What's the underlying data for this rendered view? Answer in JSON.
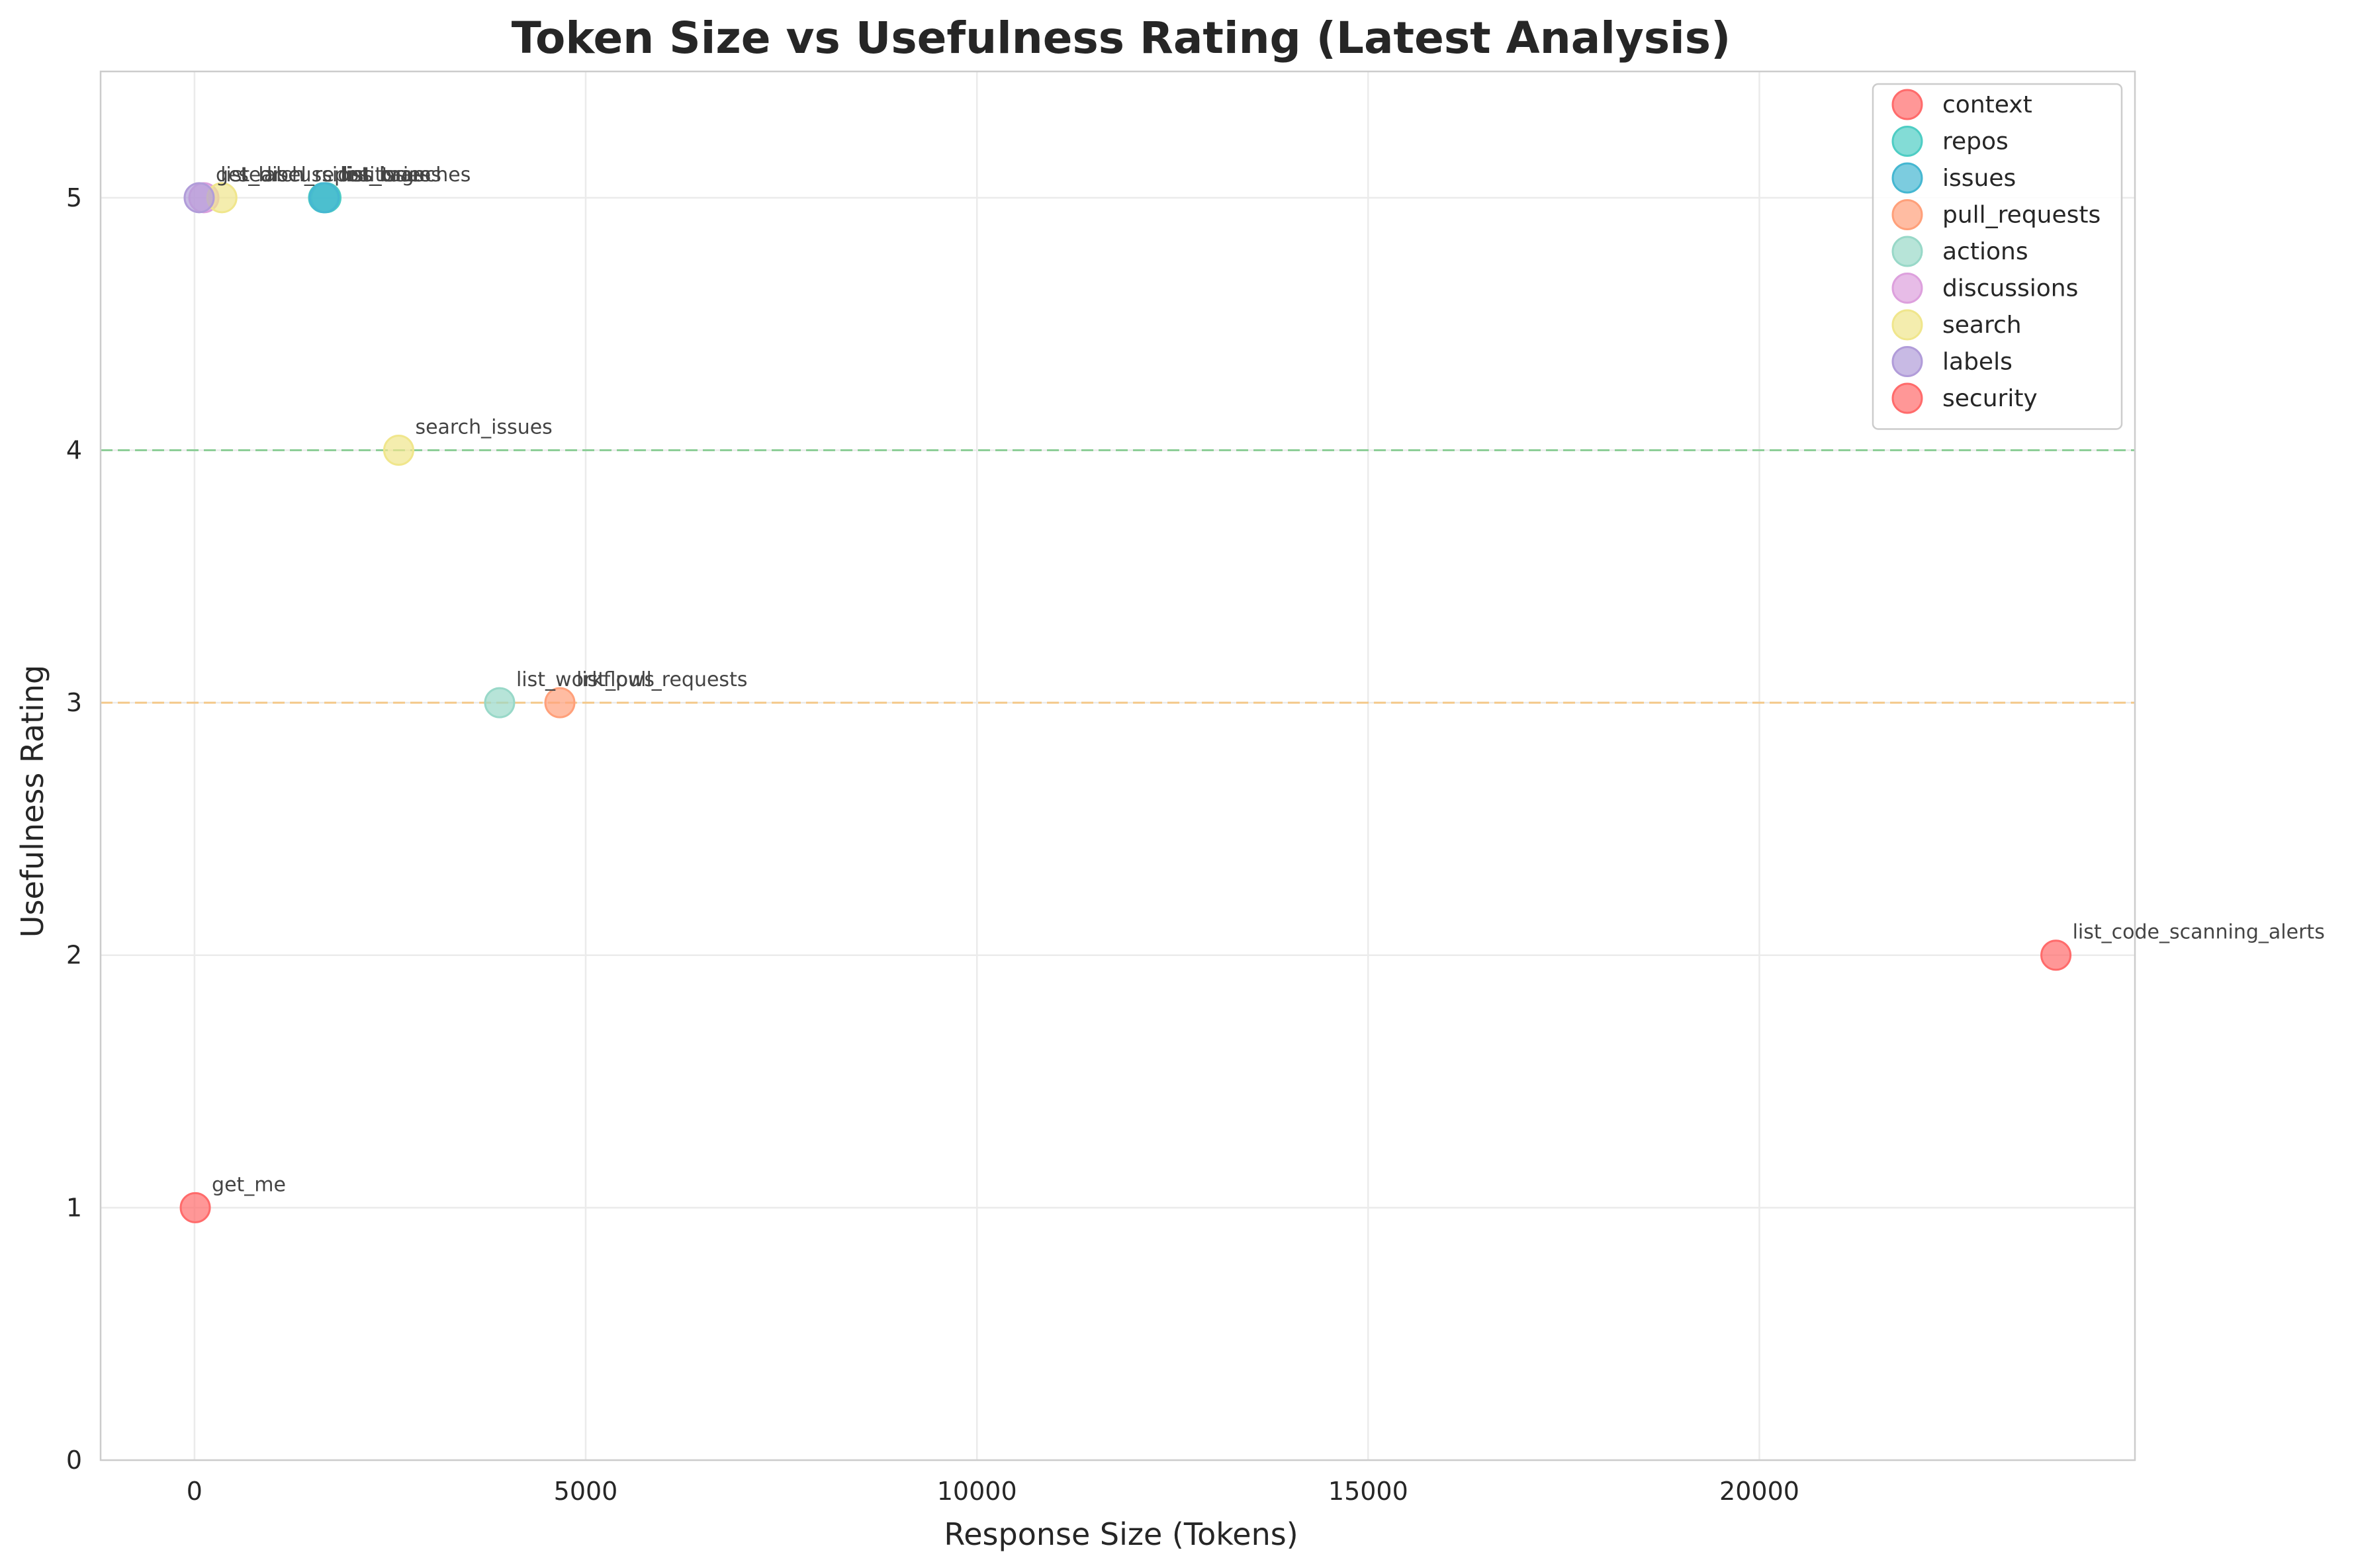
{
  "chart_data": {
    "type": "scatter",
    "title": "Token Size vs Usefulness Rating (Latest Analysis)",
    "xlabel": "Response Size (Tokens)",
    "ylabel": "Usefulness Rating",
    "xlim": [
      -1200,
      24800
    ],
    "ylim": [
      0,
      5.5
    ],
    "xticks": [
      0,
      5000,
      10000,
      15000,
      20000
    ],
    "yticks": [
      0,
      1,
      2,
      3,
      4,
      5
    ],
    "grid": true,
    "legend_position": "top-right",
    "reference_lines": [
      {
        "y": 4,
        "color": "#7dc98a",
        "style": "dashed"
      },
      {
        "y": 3,
        "color": "#f5c27a",
        "style": "dashed"
      }
    ],
    "series": [
      {
        "name": "context",
        "color": "#ff6b6b",
        "points": [
          {
            "x": 10,
            "y": 1,
            "label": "get_me"
          }
        ]
      },
      {
        "name": "repos",
        "color": "#4ecdc4",
        "points": [
          {
            "x": 1650,
            "y": 5,
            "label": "list_branches"
          },
          {
            "x": 1680,
            "y": 5,
            "label": "list_tags"
          }
        ]
      },
      {
        "name": "issues",
        "color": "#45b7d1",
        "points": [
          {
            "x": 1660,
            "y": 5,
            "label": "list_issues"
          }
        ]
      },
      {
        "name": "pull_requests",
        "color": "#ffa07a",
        "points": [
          {
            "x": 4670,
            "y": 3,
            "label": "list_pull_requests"
          }
        ]
      },
      {
        "name": "actions",
        "color": "#98d8c8",
        "points": [
          {
            "x": 3900,
            "y": 3,
            "label": "list_workflows"
          }
        ]
      },
      {
        "name": "discussions",
        "color": "#dda0dd",
        "points": [
          {
            "x": 120,
            "y": 5,
            "label": "list_discussions"
          }
        ]
      },
      {
        "name": "search",
        "color": "#f0e68c",
        "points": [
          {
            "x": 350,
            "y": 5,
            "label": "search_repositories"
          },
          {
            "x": 2610,
            "y": 4,
            "label": "search_issues"
          }
        ]
      },
      {
        "name": "labels",
        "color": "#b19cd9",
        "points": [
          {
            "x": 60,
            "y": 5,
            "label": "get_label"
          }
        ]
      },
      {
        "name": "security",
        "color": "#ff6b6b",
        "points": [
          {
            "x": 23790,
            "y": 2,
            "label": "list_code_scanning_alerts"
          }
        ]
      }
    ]
  }
}
